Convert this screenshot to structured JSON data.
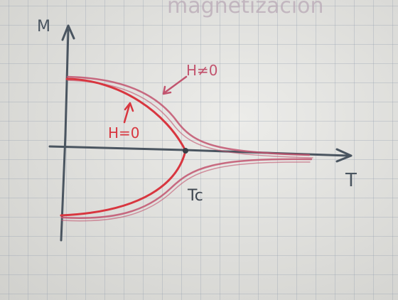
{
  "title_fragment": "magnetizacion",
  "y_axis_label": "M",
  "x_axis_label": "T",
  "critical_label": "Tc",
  "curve_h_nonzero_label": "H≠0",
  "curve_h_zero_label": "H=0",
  "colors": {
    "ink": "#4a5560",
    "red_curve": "#d8363f",
    "pink_curve": "#c2546e"
  }
}
